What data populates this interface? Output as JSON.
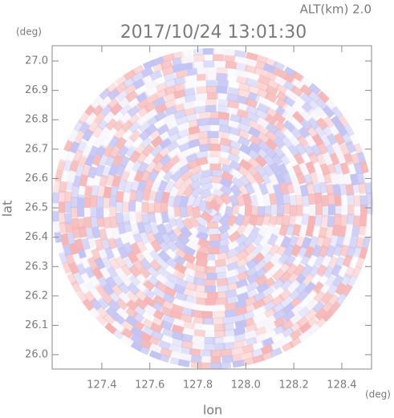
{
  "chart_data": {
    "type": "ppi",
    "title": "2017/10/24 13:01:30",
    "subtitle": "ALT(km) 2.0",
    "x_label": "lon",
    "y_label": "lat",
    "x_unit": "(deg)",
    "y_unit": "(deg)",
    "xlim": [
      127.193,
      128.524
    ],
    "ylim": [
      25.951,
      27.052
    ],
    "xticks": [
      127.4,
      127.6,
      127.8,
      {
        "value": 128,
        "label": "128.0"
      },
      128.2,
      128.4
    ],
    "yticks": [
      {
        "value": 26,
        "label": "26.0"
      },
      26.1,
      26.2,
      26.3,
      26.4,
      26.5,
      26.6,
      26.7,
      26.8,
      26.9,
      {
        "value": 27,
        "label": "27.0"
      }
    ]
  }
}
